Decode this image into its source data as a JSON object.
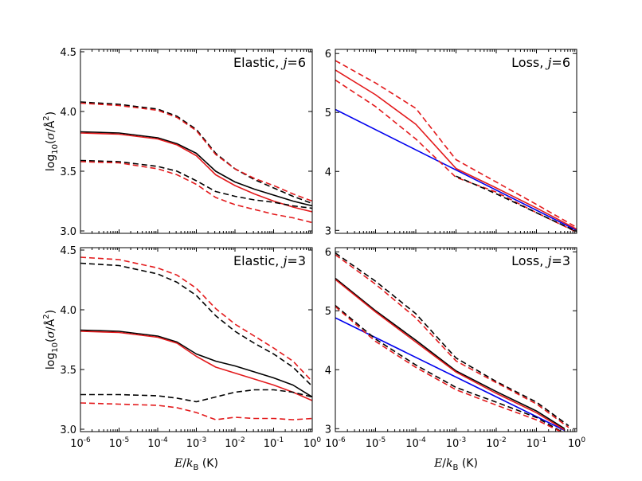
{
  "figure": {
    "xlabel": "E/k_B (K)",
    "ylabel": "log10(σ/Å²)",
    "colors": {
      "black": "#000000",
      "red": "#e31a1c",
      "blue": "#0000ee"
    }
  },
  "chart_data": [
    {
      "id": "elastic-j6",
      "type": "line",
      "title": "Elastic, j=6",
      "xscale": "log",
      "xlim": [
        -6,
        0
      ],
      "ylim": [
        2.98,
        4.52
      ],
      "xticks": [],
      "yticks": [
        3.0,
        3.5,
        4.0,
        4.5
      ],
      "series": [
        {
          "color": "black",
          "dash": false,
          "x": [
            -6,
            -5,
            -4,
            -3.5,
            -3,
            -2.5,
            -2,
            -1.5,
            -1,
            -0.5,
            0
          ],
          "y": [
            3.83,
            3.82,
            3.78,
            3.73,
            3.65,
            3.5,
            3.41,
            3.35,
            3.3,
            3.25,
            3.21
          ]
        },
        {
          "color": "red",
          "dash": false,
          "x": [
            -6,
            -5,
            -4,
            -3.5,
            -3,
            -2.5,
            -2,
            -1.5,
            -1,
            -0.5,
            0
          ],
          "y": [
            3.82,
            3.81,
            3.77,
            3.72,
            3.63,
            3.47,
            3.38,
            3.31,
            3.25,
            3.2,
            3.16
          ]
        },
        {
          "color": "black",
          "dash": true,
          "x": [
            -6,
            -5,
            -4,
            -3.5,
            -3,
            -2.5,
            -2,
            -1.5,
            -1,
            -0.5,
            0
          ],
          "y": [
            4.08,
            4.06,
            4.02,
            3.96,
            3.85,
            3.65,
            3.52,
            3.43,
            3.36,
            3.29,
            3.23
          ]
        },
        {
          "color": "red",
          "dash": true,
          "x": [
            -6,
            -5,
            -4,
            -3.5,
            -3,
            -2.5,
            -2,
            -1.5,
            -1,
            -0.5,
            0
          ],
          "y": [
            4.07,
            4.05,
            4.01,
            3.95,
            3.84,
            3.64,
            3.52,
            3.44,
            3.38,
            3.31,
            3.25
          ]
        },
        {
          "color": "black",
          "dash": true,
          "x": [
            -6,
            -5,
            -4,
            -3.5,
            -3,
            -2.5,
            -2,
            -1.5,
            -1,
            -0.5,
            0
          ],
          "y": [
            3.59,
            3.58,
            3.54,
            3.5,
            3.42,
            3.33,
            3.29,
            3.26,
            3.24,
            3.21,
            3.19
          ]
        },
        {
          "color": "red",
          "dash": true,
          "x": [
            -6,
            -5,
            -4,
            -3.5,
            -3,
            -2.5,
            -2,
            -1.5,
            -1,
            -0.5,
            0
          ],
          "y": [
            3.58,
            3.57,
            3.52,
            3.47,
            3.39,
            3.28,
            3.22,
            3.18,
            3.14,
            3.11,
            3.07
          ]
        }
      ]
    },
    {
      "id": "loss-j6",
      "type": "line",
      "title": "Loss, j=6",
      "xscale": "log",
      "xlim": [
        -6,
        0
      ],
      "ylim": [
        2.95,
        6.07
      ],
      "xticks": [],
      "yticks": [
        3,
        4,
        5,
        6
      ],
      "series": [
        {
          "color": "blue",
          "dash": false,
          "x": [
            -6,
            0
          ],
          "y": [
            5.05,
            3.0
          ]
        },
        {
          "color": "red",
          "dash": false,
          "x": [
            -6,
            -5,
            -4,
            -3,
            -2,
            -1,
            0
          ],
          "y": [
            5.72,
            5.3,
            4.8,
            4.05,
            3.72,
            3.38,
            3.02
          ]
        },
        {
          "color": "red",
          "dash": true,
          "x": [
            -6,
            -5,
            -4,
            -3,
            -2,
            -1,
            0
          ],
          "y": [
            5.88,
            5.5,
            5.07,
            4.2,
            3.82,
            3.44,
            3.05
          ]
        },
        {
          "color": "red",
          "dash": true,
          "x": [
            -6,
            -5,
            -4,
            -3,
            -2,
            -1,
            0
          ],
          "y": [
            5.55,
            5.1,
            4.55,
            3.9,
            3.65,
            3.3,
            2.97
          ]
        },
        {
          "color": "black",
          "dash": true,
          "x": [
            -3,
            -2,
            -1,
            0
          ],
          "y": [
            3.92,
            3.62,
            3.3,
            2.98
          ]
        }
      ]
    },
    {
      "id": "elastic-j3",
      "type": "line",
      "title": "Elastic, j=3",
      "xscale": "log",
      "xlim": [
        -6,
        0
      ],
      "ylim": [
        2.98,
        4.52
      ],
      "xticks": [
        -6,
        -5,
        -4,
        -3,
        -2,
        -1,
        0
      ],
      "yticks": [
        3.0,
        3.5,
        4.0,
        4.5
      ],
      "series": [
        {
          "color": "black",
          "dash": false,
          "x": [
            -6,
            -5,
            -4,
            -3.5,
            -3,
            -2.5,
            -2,
            -1.5,
            -1,
            -0.5,
            0
          ],
          "y": [
            3.83,
            3.82,
            3.78,
            3.73,
            3.63,
            3.57,
            3.53,
            3.48,
            3.43,
            3.37,
            3.27
          ]
        },
        {
          "color": "red",
          "dash": false,
          "x": [
            -6,
            -5,
            -4,
            -3.5,
            -3,
            -2.5,
            -2,
            -1.5,
            -1,
            -0.5,
            0
          ],
          "y": [
            3.82,
            3.81,
            3.77,
            3.72,
            3.61,
            3.52,
            3.47,
            3.42,
            3.37,
            3.31,
            3.24
          ]
        },
        {
          "color": "black",
          "dash": true,
          "x": [
            -6,
            -5,
            -4,
            -3.5,
            -3,
            -2.5,
            -2,
            -1.5,
            -1,
            -0.5,
            0
          ],
          "y": [
            4.39,
            4.37,
            4.3,
            4.23,
            4.12,
            3.95,
            3.82,
            3.72,
            3.63,
            3.52,
            3.36
          ]
        },
        {
          "color": "red",
          "dash": true,
          "x": [
            -6,
            -5,
            -4,
            -3.5,
            -3,
            -2.5,
            -2,
            -1.5,
            -1,
            -0.5,
            0
          ],
          "y": [
            4.44,
            4.42,
            4.35,
            4.29,
            4.18,
            4.01,
            3.88,
            3.78,
            3.68,
            3.57,
            3.4
          ]
        },
        {
          "color": "black",
          "dash": true,
          "x": [
            -6,
            -5,
            -4,
            -3.5,
            -3,
            -2.5,
            -2,
            -1.5,
            -1,
            -0.5,
            0
          ],
          "y": [
            3.29,
            3.29,
            3.28,
            3.26,
            3.23,
            3.27,
            3.31,
            3.33,
            3.33,
            3.31,
            3.27
          ]
        },
        {
          "color": "red",
          "dash": true,
          "x": [
            -6,
            -5,
            -4,
            -3.5,
            -3,
            -2.5,
            -2,
            -1.5,
            -1,
            -0.5,
            0
          ],
          "y": [
            3.22,
            3.21,
            3.2,
            3.18,
            3.14,
            3.08,
            3.1,
            3.09,
            3.09,
            3.08,
            3.09
          ]
        }
      ]
    },
    {
      "id": "loss-j3",
      "type": "line",
      "title": "Loss, j=3",
      "xscale": "log",
      "xlim": [
        -6,
        0
      ],
      "ylim": [
        2.95,
        6.07
      ],
      "xticks": [
        -6,
        -5,
        -4,
        -3,
        -2,
        -1,
        0
      ],
      "yticks": [
        3,
        4,
        5,
        6
      ],
      "series": [
        {
          "color": "blue",
          "dash": false,
          "x": [
            -6,
            -0.3
          ],
          "y": [
            4.88,
            2.97
          ]
        },
        {
          "color": "black",
          "dash": false,
          "x": [
            -6,
            -5,
            -4,
            -3,
            -2,
            -1,
            -0.3
          ],
          "y": [
            5.55,
            5.0,
            4.5,
            3.98,
            3.63,
            3.3,
            3.0
          ]
        },
        {
          "color": "red",
          "dash": false,
          "x": [
            -6,
            -5,
            -4,
            -3,
            -2,
            -1,
            -0.3
          ],
          "y": [
            5.53,
            4.98,
            4.47,
            3.96,
            3.6,
            3.27,
            2.98
          ]
        },
        {
          "color": "black",
          "dash": true,
          "x": [
            -6,
            -5,
            -4,
            -3,
            -2,
            -1,
            -0.2
          ],
          "y": [
            5.98,
            5.5,
            4.95,
            4.2,
            3.8,
            3.45,
            3.05
          ]
        },
        {
          "color": "red",
          "dash": true,
          "x": [
            -6,
            -5,
            -4,
            -3,
            -2,
            -1,
            -0.2
          ],
          "y": [
            5.95,
            5.45,
            4.88,
            4.15,
            3.78,
            3.42,
            3.02
          ]
        },
        {
          "color": "black",
          "dash": true,
          "x": [
            -6,
            -5,
            -4,
            -3,
            -2,
            -1,
            -0.4
          ],
          "y": [
            5.09,
            4.52,
            4.08,
            3.7,
            3.45,
            3.19,
            2.96
          ]
        },
        {
          "color": "red",
          "dash": true,
          "x": [
            -6,
            -5,
            -4,
            -3,
            -2,
            -1,
            -0.4
          ],
          "y": [
            5.07,
            4.48,
            4.04,
            3.66,
            3.4,
            3.15,
            2.95
          ]
        }
      ]
    }
  ]
}
